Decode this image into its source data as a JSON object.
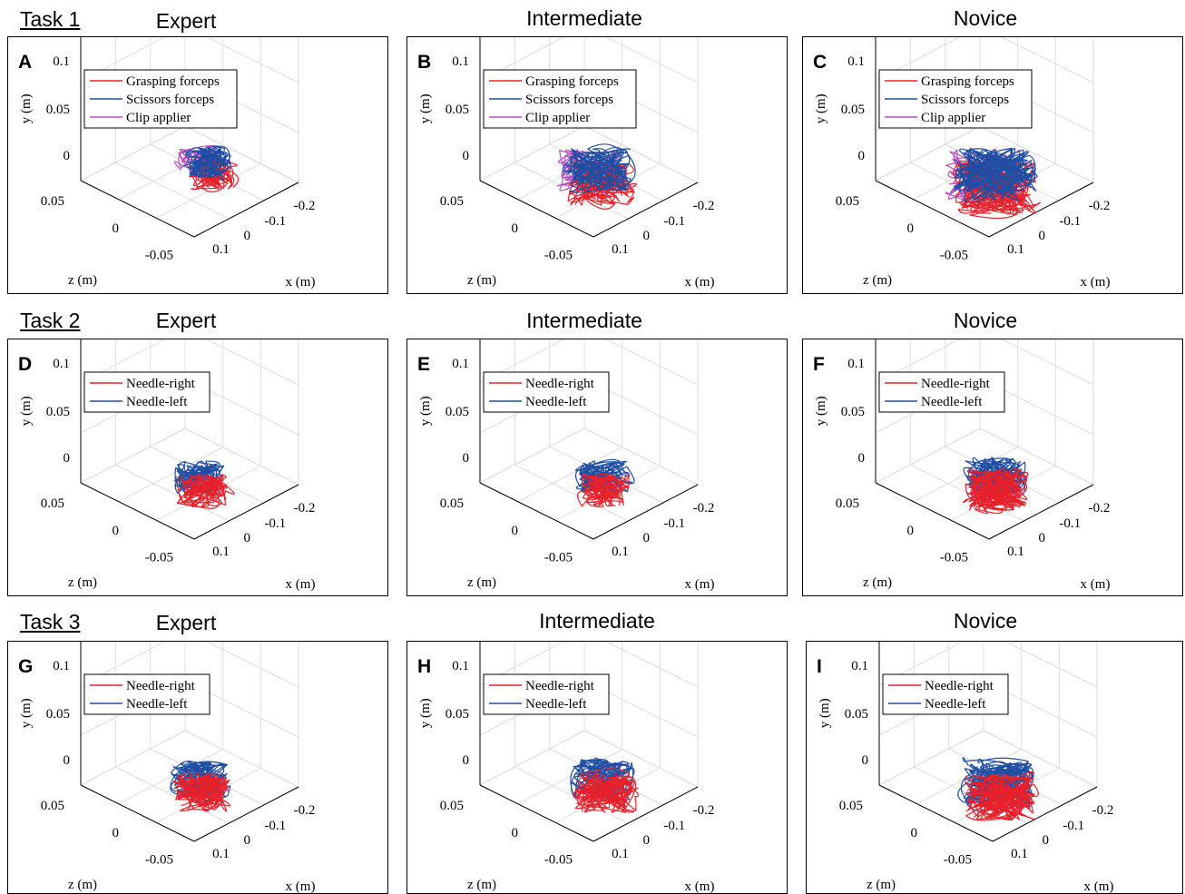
{
  "tasks": [
    {
      "label": "Task 1",
      "columns": [
        "Expert",
        "Intermediate",
        "Novice"
      ]
    },
    {
      "label": "Task 2",
      "columns": [
        "Expert",
        "Intermediate",
        "Novice"
      ]
    },
    {
      "label": "Task 3",
      "columns": [
        "Expert",
        "Intermediate",
        "Novice"
      ]
    }
  ],
  "colors": {
    "red": "#e8212b",
    "blue": "#1f4ea3",
    "purple": "#b44fc2",
    "grid": "#dddddd",
    "axis": "#000000"
  },
  "chart_data": [
    {
      "type": "line",
      "panel": "A",
      "task": "Task 1",
      "level": "Expert",
      "xlabel": "x (m)",
      "ylabel": "y (m)",
      "zlabel": "z (m)",
      "xticks": [
        "0.1",
        "0",
        "-0.1",
        "-0.2"
      ],
      "yticks": [
        "0.1",
        "0.05",
        "0"
      ],
      "zticks": [
        "0.05",
        "0",
        "-0.05"
      ],
      "legend": [
        "Grasping forceps",
        "Scissors forceps",
        "Clip applier"
      ],
      "spread": 0.55,
      "density": 14,
      "seed": 11,
      "offset": [
        0.1,
        -0.15
      ]
    },
    {
      "type": "line",
      "panel": "B",
      "task": "Task 1",
      "level": "Intermediate",
      "xlabel": "x (m)",
      "ylabel": "y (m)",
      "zlabel": "z (m)",
      "xticks": [
        "0.1",
        "0",
        "-0.1",
        "-0.2"
      ],
      "yticks": [
        "0.1",
        "0.05",
        "0"
      ],
      "zticks": [
        "0.05",
        "0",
        "-0.05"
      ],
      "legend": [
        "Grasping forceps",
        "Scissors forceps",
        "Clip applier"
      ],
      "spread": 0.8,
      "density": 18,
      "seed": 23,
      "offset": [
        0.0,
        -0.05
      ]
    },
    {
      "type": "line",
      "panel": "C",
      "task": "Task 1",
      "level": "Novice",
      "xlabel": "x (m)",
      "ylabel": "y (m)",
      "zlabel": "z (m)",
      "xticks": [
        "0.1",
        "0",
        "-0.1",
        "-0.2"
      ],
      "yticks": [
        "0.1",
        "0.05",
        "0"
      ],
      "zticks": [
        "0.05",
        "0",
        "-0.05"
      ],
      "legend": [
        "Grasping forceps",
        "Scissors forceps",
        "Clip applier"
      ],
      "spread": 1.0,
      "density": 26,
      "seed": 37,
      "offset": [
        0.0,
        0.0
      ]
    },
    {
      "type": "line",
      "panel": "D",
      "task": "Task 2",
      "level": "Expert",
      "xlabel": "x (m)",
      "ylabel": "y (m)",
      "zlabel": "z (m)",
      "xticks": [
        "0.1",
        "0",
        "-0.1",
        "-0.2"
      ],
      "yticks": [
        "0.1",
        "0.05",
        "0"
      ],
      "zticks": [
        "0.05",
        "0",
        "-0.05"
      ],
      "legend": [
        "Needle-right",
        "Needle-left"
      ],
      "spread": 0.6,
      "density": 14,
      "seed": 41,
      "offset": [
        0.0,
        0.0
      ]
    },
    {
      "type": "line",
      "panel": "E",
      "task": "Task 2",
      "level": "Intermediate",
      "xlabel": "x (m)",
      "ylabel": "y (m)",
      "zlabel": "z (m)",
      "xticks": [
        "0.1",
        "0",
        "-0.1",
        "-0.2"
      ],
      "yticks": [
        "0.1",
        "0.05",
        "0"
      ],
      "zticks": [
        "0.05",
        "0",
        "-0.05"
      ],
      "legend": [
        "Needle-right",
        "Needle-left"
      ],
      "spread": 0.6,
      "density": 14,
      "seed": 53,
      "offset": [
        0.05,
        0.0
      ]
    },
    {
      "type": "line",
      "panel": "F",
      "task": "Task 2",
      "level": "Novice",
      "xlabel": "x (m)",
      "ylabel": "y (m)",
      "zlabel": "z (m)",
      "xticks": [
        "0.1",
        "0",
        "-0.1",
        "-0.2"
      ],
      "yticks": [
        "0.1",
        "0.05",
        "0"
      ],
      "zticks": [
        "0.05",
        "0",
        "-0.05"
      ],
      "legend": [
        "Needle-right",
        "Needle-left"
      ],
      "spread": 0.75,
      "density": 22,
      "seed": 61,
      "offset": [
        0.0,
        0.0
      ]
    },
    {
      "type": "line",
      "panel": "G",
      "task": "Task 3",
      "level": "Expert",
      "xlabel": "x (m)",
      "ylabel": "y (m)",
      "zlabel": "z (m)",
      "xticks": [
        "0.1",
        "0",
        "-0.1",
        "-0.2"
      ],
      "yticks": [
        "0.1",
        "0.05",
        "0"
      ],
      "zticks": [
        "0.05",
        "0",
        "-0.05"
      ],
      "legend": [
        "Needle-right",
        "Needle-left"
      ],
      "spread": 0.7,
      "density": 18,
      "seed": 71,
      "offset": [
        0.0,
        0.0
      ]
    },
    {
      "type": "line",
      "panel": "H",
      "task": "Task 3",
      "level": "Intermediate",
      "xlabel": "x (m)",
      "ylabel": "y (m)",
      "zlabel": "z (m)",
      "xticks": [
        "0.1",
        "0",
        "-0.1",
        "-0.2"
      ],
      "yticks": [
        "0.1",
        "0.05",
        "0"
      ],
      "zticks": [
        "0.05",
        "0",
        "-0.05"
      ],
      "legend": [
        "Needle-right",
        "Needle-left"
      ],
      "spread": 0.75,
      "density": 18,
      "seed": 83,
      "offset": [
        0.05,
        0.0
      ]
    },
    {
      "type": "line",
      "panel": "I",
      "task": "Task 3",
      "level": "Novice",
      "xlabel": "x (m)",
      "ylabel": "y (m)",
      "zlabel": "z (m)",
      "xticks": [
        "0.1",
        "0",
        "-0.1",
        "-0.2"
      ],
      "yticks": [
        "0.1",
        "0.05",
        "0"
      ],
      "zticks": [
        "0.05",
        "0",
        "-0.05"
      ],
      "legend": [
        "Needle-right",
        "Needle-left"
      ],
      "spread": 0.85,
      "density": 24,
      "seed": 97,
      "offset": [
        0.0,
        0.05
      ]
    }
  ]
}
